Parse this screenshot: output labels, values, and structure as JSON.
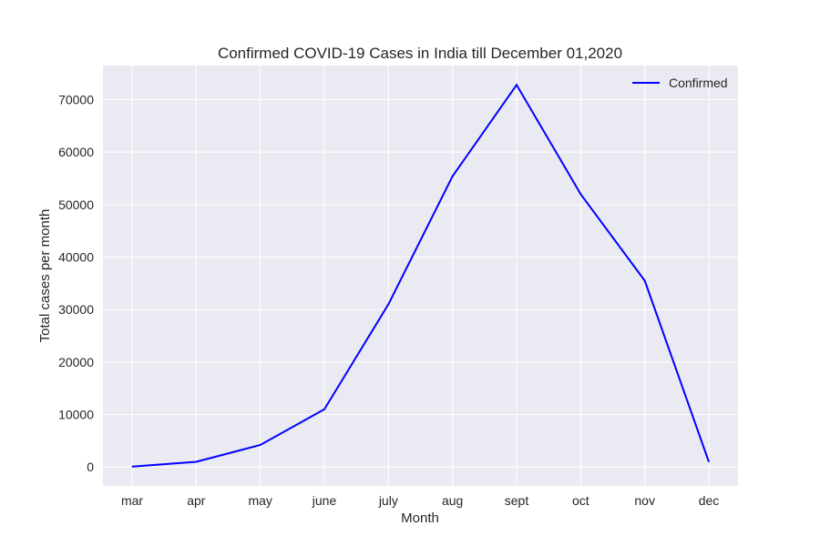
{
  "chart_data": {
    "type": "line",
    "title": "Confirmed COVID-19 Cases in India till December 01,2020",
    "xlabel": "Month",
    "ylabel": "Total cases per month",
    "categories": [
      "mar",
      "apr",
      "may",
      "june",
      "july",
      "aug",
      "sept",
      "oct",
      "nov",
      "dec"
    ],
    "series": [
      {
        "name": "Confirmed",
        "color": "#0000ff",
        "values": [
          100,
          1000,
          4200,
          11000,
          31000,
          55400,
          72800,
          52000,
          35500,
          1000
        ]
      }
    ],
    "ylim": [
      -3600,
      76500
    ],
    "yticks": [
      0,
      10000,
      20000,
      30000,
      40000,
      50000,
      60000,
      70000
    ],
    "ytick_labels": [
      "0",
      "10000",
      "20000",
      "30000",
      "40000",
      "50000",
      "60000",
      "70000"
    ],
    "grid": true,
    "legend_position": "top-right",
    "colors": {
      "plot_background": "#eaeaf2",
      "grid": "#ffffff",
      "line": "#0000ff"
    }
  }
}
